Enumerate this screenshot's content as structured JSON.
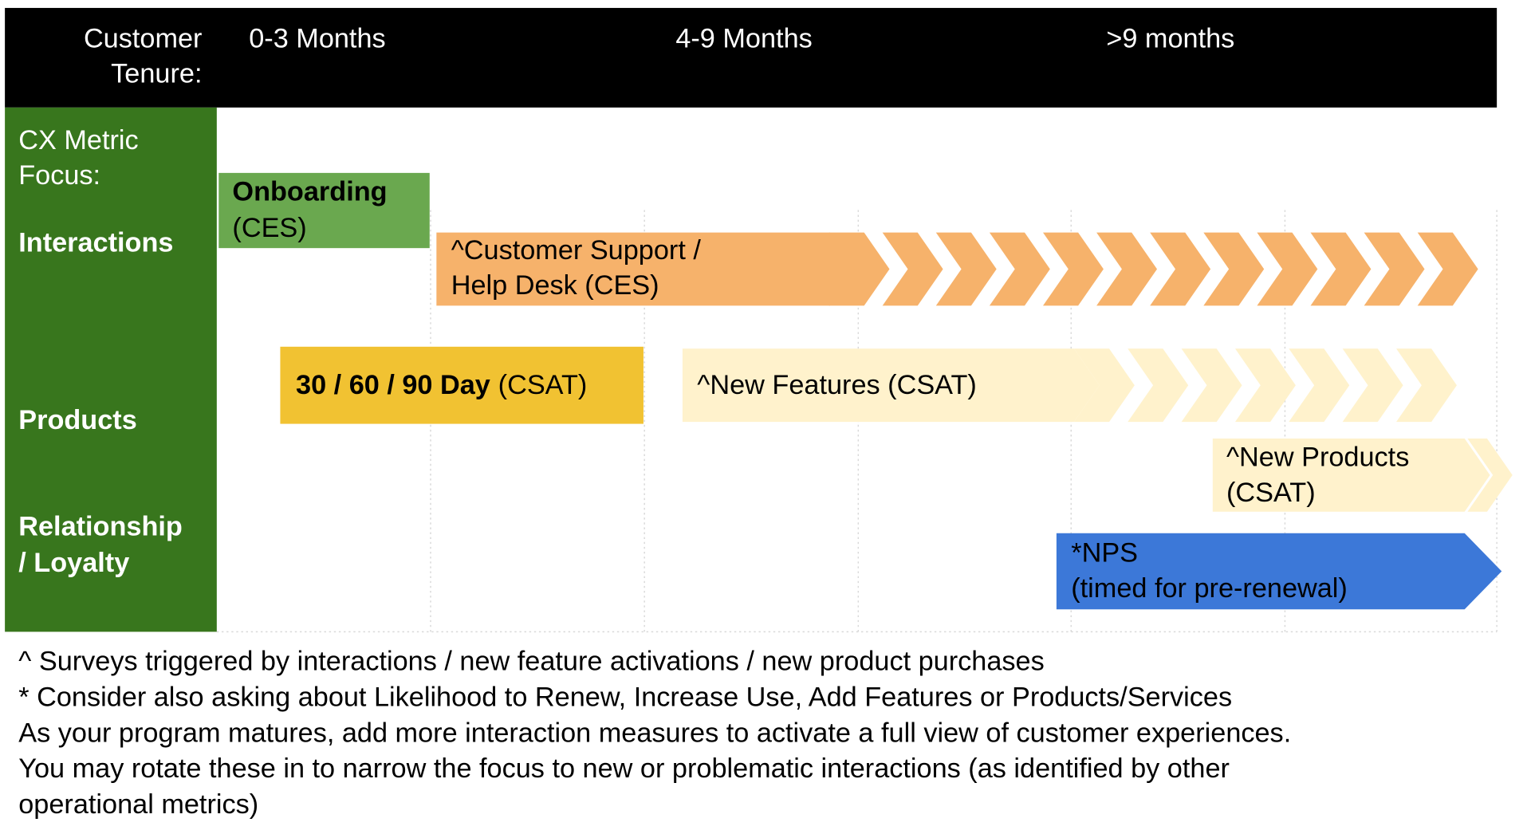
{
  "header": {
    "tenure_label": [
      "Customer",
      "Tenure:"
    ],
    "columns": [
      "0-3 Months",
      "4-9 Months",
      ">9 months"
    ]
  },
  "side": {
    "focus_label": [
      "CX Metric",
      "Focus:"
    ],
    "rows": [
      [
        "Interactions"
      ],
      [
        "Products"
      ],
      [
        "Relationship",
        "/ Loyalty"
      ]
    ]
  },
  "boxes": {
    "onboarding": {
      "bold": "Onboarding",
      "lines": [
        "(CES)"
      ]
    },
    "support": {
      "lines": [
        "^Customer Support /",
        "Help Desk (CES)"
      ]
    },
    "day": {
      "bold": "30 / 60 / 90 Day",
      "rest": "(CSAT)"
    },
    "features": {
      "lines": [
        "^New Features (CSAT)"
      ]
    },
    "products": {
      "lines": [
        "^New Products",
        "(CSAT)"
      ]
    },
    "nps": {
      "lines": [
        "*NPS",
        "(timed for pre-renewal)"
      ]
    }
  },
  "notes": [
    "^ Surveys triggered by interactions / new feature activations / new product purchases",
    "* Consider also asking about Likelihood to Renew, Increase Use, Add Features or Products/Services",
    "As your program matures, add more interaction measures to activate a full view of customer experiences.",
    "You may rotate these in to narrow the focus to new or problematic interactions (as identified by other",
    "operational metrics)"
  ]
}
